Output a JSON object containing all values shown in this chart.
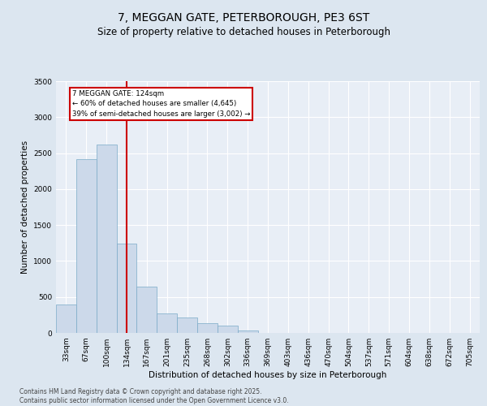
{
  "title": "7, MEGGAN GATE, PETERBOROUGH, PE3 6ST",
  "subtitle": "Size of property relative to detached houses in Peterborough",
  "xlabel": "Distribution of detached houses by size in Peterborough",
  "ylabel": "Number of detached properties",
  "bar_color": "#ccd9ea",
  "bar_edge_color": "#7aaac8",
  "background_color": "#dde6f0",
  "plot_bg_color": "#e8eef6",
  "grid_color": "#ffffff",
  "annotation_box_color": "#cc0000",
  "vline_color": "#cc0000",
  "categories": [
    "33sqm",
    "67sqm",
    "100sqm",
    "134sqm",
    "167sqm",
    "201sqm",
    "235sqm",
    "268sqm",
    "302sqm",
    "336sqm",
    "369sqm",
    "403sqm",
    "436sqm",
    "470sqm",
    "504sqm",
    "537sqm",
    "571sqm",
    "604sqm",
    "638sqm",
    "672sqm",
    "705sqm"
  ],
  "values": [
    390,
    2420,
    2620,
    1240,
    640,
    270,
    210,
    140,
    100,
    30,
    0,
    0,
    0,
    0,
    0,
    0,
    0,
    0,
    0,
    0,
    0
  ],
  "ylim": [
    0,
    3500
  ],
  "yticks": [
    0,
    500,
    1000,
    1500,
    2000,
    2500,
    3000,
    3500
  ],
  "annotation_line1": "7 MEGGAN GATE: 124sqm",
  "annotation_line2": "← 60% of detached houses are smaller (4,645)",
  "annotation_line3": "39% of semi-detached houses are larger (3,002) →",
  "vline_position": 3.0,
  "footer1": "Contains HM Land Registry data © Crown copyright and database right 2025.",
  "footer2": "Contains public sector information licensed under the Open Government Licence v3.0.",
  "title_fontsize": 10,
  "subtitle_fontsize": 8.5,
  "tick_fontsize": 6.5,
  "ylabel_fontsize": 7.5,
  "xlabel_fontsize": 7.5,
  "footer_fontsize": 5.5
}
